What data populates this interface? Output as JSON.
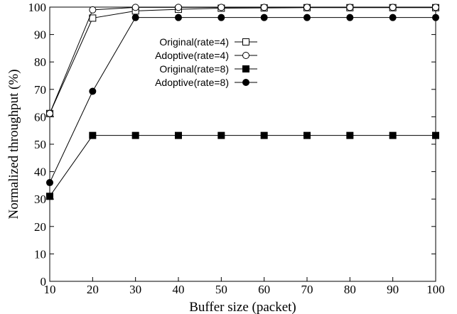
{
  "chart_data": {
    "type": "line",
    "title": "",
    "xlabel": "Buffer size (packet)",
    "ylabel": "Normalized throughput (%)",
    "x": [
      10,
      20,
      30,
      40,
      50,
      60,
      70,
      80,
      90,
      100
    ],
    "xlim": [
      10,
      100
    ],
    "ylim": [
      0,
      100
    ],
    "xticks": [
      "10",
      "20",
      "30",
      "40",
      "50",
      "60",
      "70",
      "80",
      "90",
      "100"
    ],
    "yticks": [
      "0",
      "10",
      "20",
      "30",
      "40",
      "50",
      "60",
      "70",
      "80",
      "90",
      "100"
    ],
    "grid": false,
    "legend_position": "top-center",
    "series": [
      {
        "name": "Original(rate=4)",
        "marker": "open-square",
        "values": [
          61.2,
          96.0,
          98.6,
          99.2,
          99.6,
          99.7,
          99.8,
          99.8,
          99.8,
          99.8
        ]
      },
      {
        "name": "Adoptive(rate=4)",
        "marker": "open-circle",
        "values": [
          61.2,
          99.0,
          99.9,
          99.9,
          99.9,
          99.9,
          99.9,
          99.9,
          99.9,
          99.9
        ]
      },
      {
        "name": "Original(rate=8)",
        "marker": "filled-square",
        "values": [
          31.0,
          53.2,
          53.2,
          53.2,
          53.2,
          53.2,
          53.2,
          53.2,
          53.2,
          53.2
        ]
      },
      {
        "name": "Adoptive(rate=8)",
        "marker": "filled-circle",
        "values": [
          36.0,
          69.3,
          96.2,
          96.2,
          96.2,
          96.2,
          96.2,
          96.2,
          96.2,
          96.2
        ]
      }
    ]
  }
}
